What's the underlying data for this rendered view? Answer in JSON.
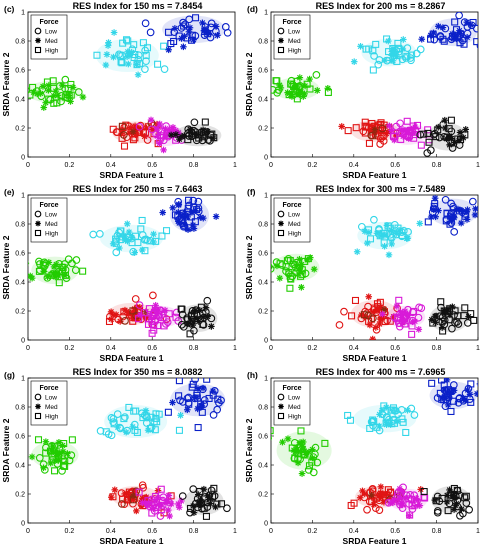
{
  "figure": {
    "colors": {
      "green": "#22cc00",
      "cyan": "#33d6e8",
      "blue": "#0a20c8",
      "red": "#e01414",
      "magenta": "#d81ad8",
      "black": "#111111",
      "brown": "#8b2a10"
    }
  },
  "chart_data": [
    {
      "type": "scatter",
      "panel_label": "(c)",
      "title": "RES Index for 150 ms = 7.8454",
      "xlabel": "SRDA Feature 1",
      "ylabel": "SRDA Feature 2",
      "xlim": [
        0,
        1
      ],
      "ylim": [
        0,
        1
      ],
      "xticks": [
        "0",
        "0.2",
        "0.4",
        "0.6",
        "0.8",
        "1"
      ],
      "yticks": [
        "0",
        "0.2",
        "0.4",
        "0.6",
        "0.8",
        "1"
      ],
      "legend": {
        "title": "Force",
        "entries": [
          "Low",
          "Med",
          "High"
        ],
        "markers": [
          "circle",
          "asterisk",
          "square"
        ],
        "position": "top-left"
      },
      "grid": false,
      "clusters": [
        {
          "color": "green",
          "cx": 0.12,
          "cy": 0.45,
          "sx": 0.07,
          "sy": 0.04,
          "n": 42
        },
        {
          "color": "cyan",
          "cx": 0.48,
          "cy": 0.7,
          "sx": 0.08,
          "sy": 0.06,
          "n": 42
        },
        {
          "color": "blue",
          "cx": 0.8,
          "cy": 0.88,
          "sx": 0.08,
          "sy": 0.05,
          "n": 42
        },
        {
          "color": "red",
          "cx": 0.52,
          "cy": 0.17,
          "sx": 0.06,
          "sy": 0.04,
          "n": 40
        },
        {
          "color": "magenta",
          "cx": 0.66,
          "cy": 0.15,
          "sx": 0.05,
          "sy": 0.04,
          "n": 36
        },
        {
          "color": "black",
          "cx": 0.82,
          "cy": 0.15,
          "sx": 0.06,
          "sy": 0.04,
          "n": 36
        }
      ]
    },
    {
      "type": "scatter",
      "panel_label": "(d)",
      "title": "RES Index for 200 ms = 8.2867",
      "xlabel": "SRDA Feature 1",
      "ylabel": "SRDA Feature 2",
      "xlim": [
        0,
        1
      ],
      "ylim": [
        0,
        1
      ],
      "xticks": [
        "0",
        "0.2",
        "0.4",
        "0.6",
        "0.8",
        "1"
      ],
      "yticks": [
        "0",
        "0.2",
        "0.4",
        "0.6",
        "0.8",
        "1"
      ],
      "legend": {
        "title": "Force",
        "entries": [
          "Low",
          "Med",
          "High"
        ],
        "markers": [
          "circle",
          "asterisk",
          "square"
        ],
        "position": "top-left"
      },
      "grid": false,
      "clusters": [
        {
          "color": "green",
          "cx": 0.12,
          "cy": 0.47,
          "sx": 0.06,
          "sy": 0.04,
          "n": 42
        },
        {
          "color": "cyan",
          "cx": 0.57,
          "cy": 0.72,
          "sx": 0.07,
          "sy": 0.05,
          "n": 42
        },
        {
          "color": "blue",
          "cx": 0.88,
          "cy": 0.86,
          "sx": 0.06,
          "sy": 0.05,
          "n": 42
        },
        {
          "color": "red",
          "cx": 0.5,
          "cy": 0.18,
          "sx": 0.06,
          "sy": 0.04,
          "n": 40
        },
        {
          "color": "magenta",
          "cx": 0.66,
          "cy": 0.16,
          "sx": 0.05,
          "sy": 0.04,
          "n": 36
        },
        {
          "color": "black",
          "cx": 0.85,
          "cy": 0.14,
          "sx": 0.05,
          "sy": 0.05,
          "n": 36
        }
      ]
    },
    {
      "type": "scatter",
      "panel_label": "(e)",
      "title": "RES Index for 250 ms = 7.6463",
      "xlabel": "SRDA Feature 1",
      "ylabel": "SRDA Feature 2",
      "xlim": [
        0,
        1
      ],
      "ylim": [
        0,
        1
      ],
      "xticks": [
        "0",
        "0.2",
        "0.4",
        "0.6",
        "0.8",
        "1"
      ],
      "yticks": [
        "0",
        "0.2",
        "0.4",
        "0.6",
        "0.8",
        "1"
      ],
      "legend": {
        "title": "Force",
        "entries": [
          "Low",
          "Med",
          "High"
        ],
        "markers": [
          "circle",
          "asterisk",
          "square"
        ],
        "position": "top-left"
      },
      "grid": false,
      "clusters": [
        {
          "color": "green",
          "cx": 0.13,
          "cy": 0.48,
          "sx": 0.06,
          "sy": 0.05,
          "n": 42
        },
        {
          "color": "cyan",
          "cx": 0.5,
          "cy": 0.7,
          "sx": 0.08,
          "sy": 0.05,
          "n": 42
        },
        {
          "color": "blue",
          "cx": 0.78,
          "cy": 0.86,
          "sx": 0.05,
          "sy": 0.06,
          "n": 42
        },
        {
          "color": "red",
          "cx": 0.5,
          "cy": 0.18,
          "sx": 0.06,
          "sy": 0.04,
          "n": 40
        },
        {
          "color": "magenta",
          "cx": 0.64,
          "cy": 0.16,
          "sx": 0.05,
          "sy": 0.04,
          "n": 36
        },
        {
          "color": "black",
          "cx": 0.82,
          "cy": 0.15,
          "sx": 0.05,
          "sy": 0.05,
          "n": 36
        }
      ]
    },
    {
      "type": "scatter",
      "panel_label": "(f)",
      "title": "RES Index for 300 ms = 7.5489",
      "xlabel": "SRDA Feature 1",
      "ylabel": "SRDA Feature 2",
      "xlim": [
        0,
        1
      ],
      "ylim": [
        0,
        1
      ],
      "xticks": [
        "0",
        "0.2",
        "0.4",
        "0.6",
        "0.8",
        "1"
      ],
      "yticks": [
        "0",
        "0.2",
        "0.4",
        "0.6",
        "0.8",
        "1"
      ],
      "legend": {
        "title": "Force",
        "entries": [
          "Low",
          "Med",
          "High"
        ],
        "markers": [
          "circle",
          "asterisk",
          "square"
        ],
        "position": "top-left"
      },
      "grid": false,
      "clusters": [
        {
          "color": "green",
          "cx": 0.12,
          "cy": 0.5,
          "sx": 0.06,
          "sy": 0.05,
          "n": 42
        },
        {
          "color": "cyan",
          "cx": 0.55,
          "cy": 0.72,
          "sx": 0.07,
          "sy": 0.05,
          "n": 42
        },
        {
          "color": "blue",
          "cx": 0.88,
          "cy": 0.88,
          "sx": 0.06,
          "sy": 0.05,
          "n": 42
        },
        {
          "color": "red",
          "cx": 0.5,
          "cy": 0.18,
          "sx": 0.06,
          "sy": 0.05,
          "n": 40
        },
        {
          "color": "magenta",
          "cx": 0.65,
          "cy": 0.16,
          "sx": 0.05,
          "sy": 0.04,
          "n": 36
        },
        {
          "color": "black",
          "cx": 0.86,
          "cy": 0.15,
          "sx": 0.05,
          "sy": 0.05,
          "n": 36
        }
      ]
    },
    {
      "type": "scatter",
      "panel_label": "(g)",
      "title": "RES Index for 350 ms = 8.0882",
      "xlabel": "SRDA Feature 1",
      "ylabel": "SRDA Feature 2",
      "xlim": [
        0,
        1
      ],
      "ylim": [
        0,
        1
      ],
      "xticks": [
        "0",
        "0.2",
        "0.4",
        "0.6",
        "0.8",
        "1"
      ],
      "yticks": [
        "0",
        "0.2",
        "0.4",
        "0.6",
        "0.8",
        "1"
      ],
      "legend": {
        "title": "Force",
        "entries": [
          "Low",
          "Med",
          "High"
        ],
        "markers": [
          "circle",
          "asterisk",
          "square"
        ],
        "position": "top-left"
      },
      "grid": false,
      "clusters": [
        {
          "color": "green",
          "cx": 0.13,
          "cy": 0.47,
          "sx": 0.06,
          "sy": 0.05,
          "n": 42
        },
        {
          "color": "cyan",
          "cx": 0.52,
          "cy": 0.7,
          "sx": 0.08,
          "sy": 0.06,
          "n": 42
        },
        {
          "color": "blue",
          "cx": 0.82,
          "cy": 0.85,
          "sx": 0.07,
          "sy": 0.06,
          "n": 42
        },
        {
          "color": "red",
          "cx": 0.52,
          "cy": 0.18,
          "sx": 0.06,
          "sy": 0.04,
          "n": 40
        },
        {
          "color": "magenta",
          "cx": 0.64,
          "cy": 0.14,
          "sx": 0.05,
          "sy": 0.04,
          "n": 36
        },
        {
          "color": "black",
          "cx": 0.85,
          "cy": 0.15,
          "sx": 0.05,
          "sy": 0.05,
          "n": 36
        }
      ]
    },
    {
      "type": "scatter",
      "panel_label": "(h)",
      "title": "RES Index for 400 ms = 7.6965",
      "xlabel": "SRDA Feature 1",
      "ylabel": "SRDA Feature 2",
      "xlim": [
        0,
        1
      ],
      "ylim": [
        0,
        1
      ],
      "xticks": [
        "0",
        "0.2",
        "0.4",
        "0.6",
        "0.8",
        "1"
      ],
      "yticks": [
        "0",
        "0.2",
        "0.4",
        "0.6",
        "0.8",
        "1"
      ],
      "legend": {
        "title": "Force",
        "entries": [
          "Low",
          "Med",
          "High"
        ],
        "markers": [
          "circle",
          "asterisk",
          "square"
        ],
        "position": "top-left"
      },
      "grid": false,
      "clusters": [
        {
          "color": "green",
          "cx": 0.16,
          "cy": 0.5,
          "sx": 0.07,
          "sy": 0.07,
          "n": 42
        },
        {
          "color": "cyan",
          "cx": 0.55,
          "cy": 0.72,
          "sx": 0.08,
          "sy": 0.05,
          "n": 42
        },
        {
          "color": "blue",
          "cx": 0.88,
          "cy": 0.88,
          "sx": 0.06,
          "sy": 0.05,
          "n": 42
        },
        {
          "color": "red",
          "cx": 0.52,
          "cy": 0.18,
          "sx": 0.06,
          "sy": 0.04,
          "n": 40
        },
        {
          "color": "magenta",
          "cx": 0.66,
          "cy": 0.16,
          "sx": 0.05,
          "sy": 0.04,
          "n": 36
        },
        {
          "color": "black",
          "cx": 0.87,
          "cy": 0.16,
          "sx": 0.05,
          "sy": 0.05,
          "n": 36
        }
      ]
    }
  ]
}
